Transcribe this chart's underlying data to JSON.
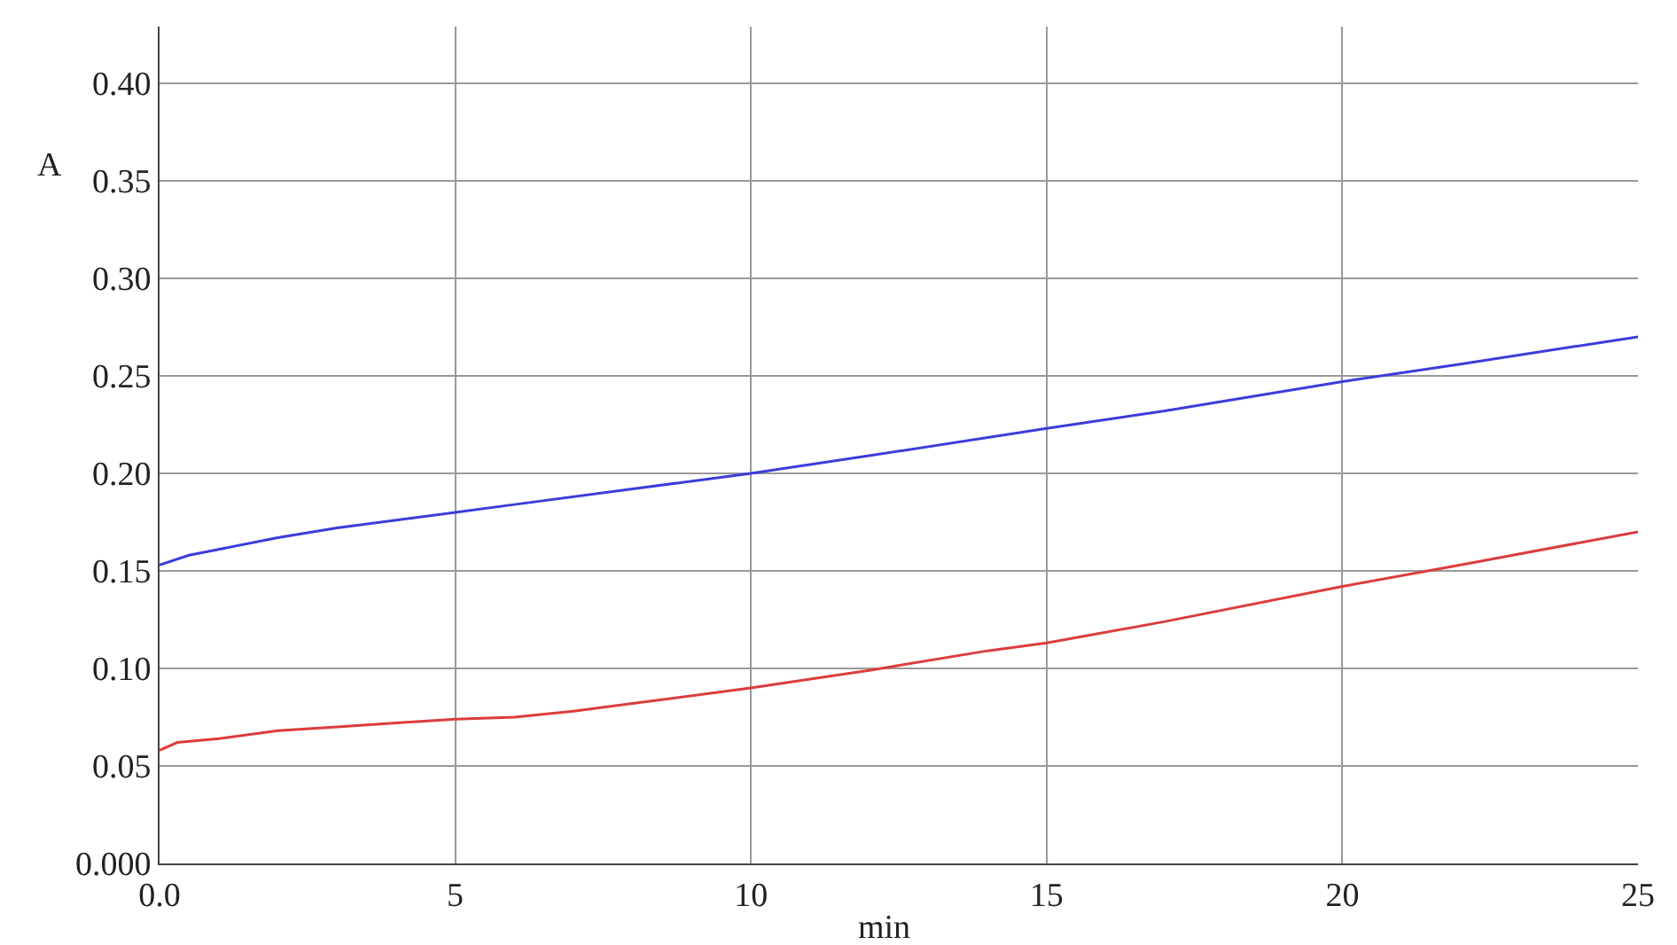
{
  "chart_data": {
    "type": "line",
    "xlabel": "min",
    "ylabel": "A",
    "xlim": [
      0,
      25
    ],
    "ylim": [
      0,
      0.429
    ],
    "xticks": [
      {
        "value": 0,
        "label": "0.0"
      },
      5,
      10,
      15,
      20,
      25
    ],
    "yticks": [
      {
        "value": 0,
        "label": "0.000"
      },
      0.05,
      {
        "value": 0.1,
        "label": "0.10"
      },
      0.15,
      {
        "value": 0.2,
        "label": "0.20"
      },
      0.25,
      {
        "value": 0.3,
        "label": "0.30"
      },
      0.35,
      {
        "value": 0.4,
        "label": "0.40"
      }
    ],
    "grid": true,
    "legend": false,
    "marker": "none",
    "line_style": "solid",
    "series": [
      {
        "color": "#3c3cdc",
        "x": [
          0,
          0.5,
          1,
          2,
          3,
          4,
          5,
          6,
          8,
          10,
          12,
          15,
          17,
          20,
          22,
          25
        ],
        "values": [
          0.153,
          0.158,
          0.161,
          0.167,
          0.172,
          0.176,
          0.18,
          0.184,
          0.192,
          0.2,
          0.209,
          0.223,
          0.232,
          0.247,
          0.256,
          0.27
        ]
      },
      {
        "color": "#dc3c3c",
        "x": [
          0,
          0.3,
          1,
          2,
          3,
          4,
          5,
          6,
          7,
          8,
          10,
          12,
          14,
          15,
          17,
          20,
          22,
          25
        ],
        "values": [
          0.058,
          0.062,
          0.064,
          0.068,
          0.07,
          0.072,
          0.074,
          0.075,
          0.078,
          0.082,
          0.09,
          0.099,
          0.109,
          0.113,
          0.124,
          0.142,
          0.153,
          0.17
        ]
      }
    ]
  }
}
